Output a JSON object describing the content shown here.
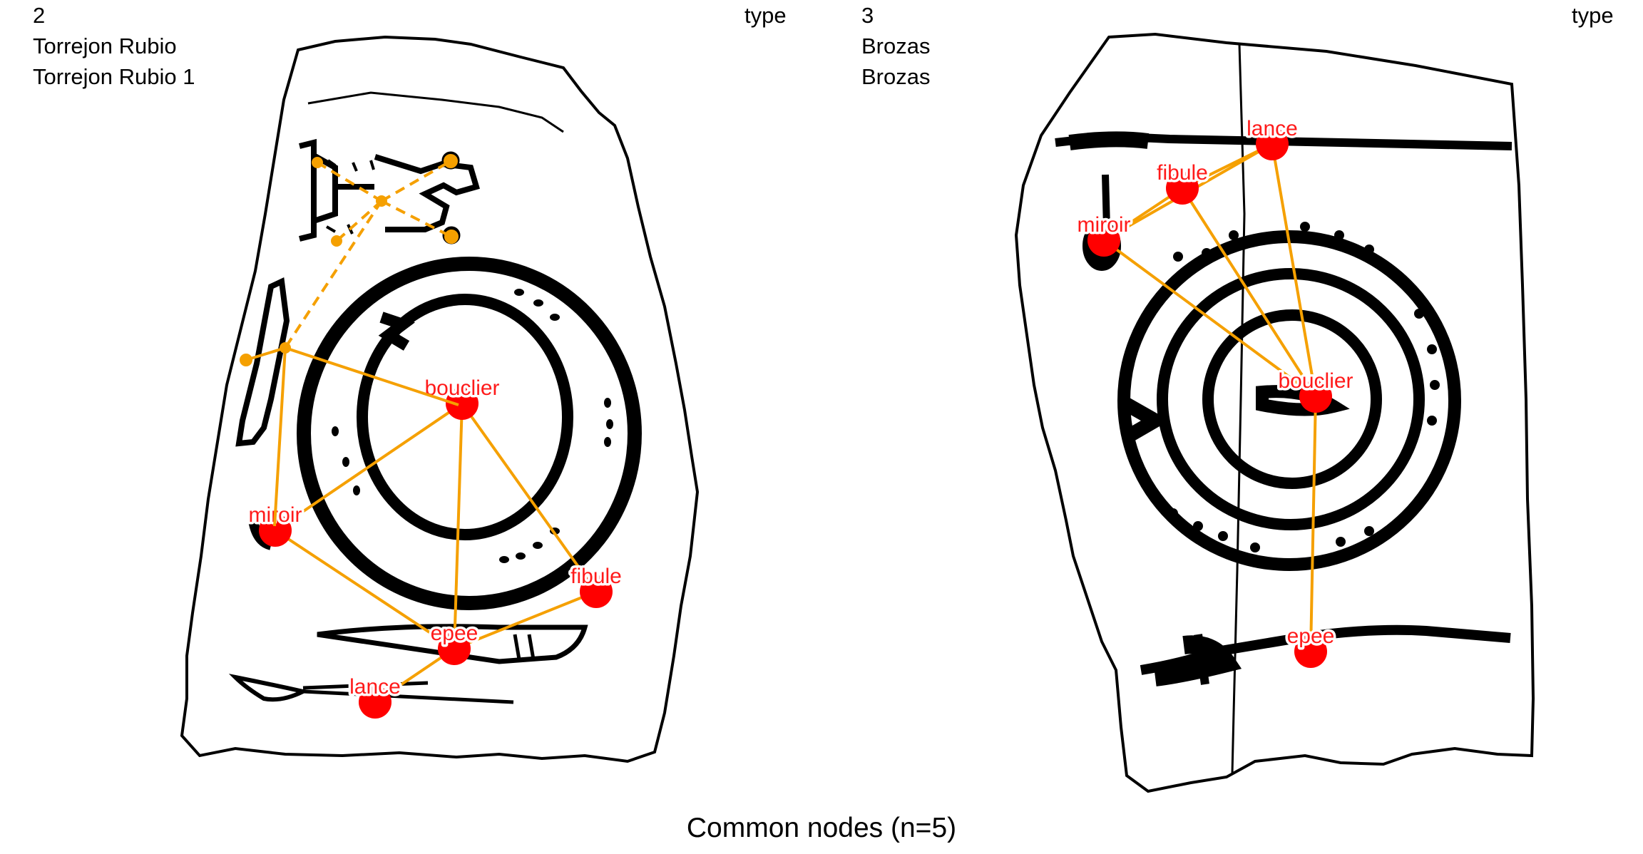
{
  "panels": [
    {
      "id": "left",
      "number": "2",
      "site": "Torrejon Rubio",
      "name": "Torrejon Rubio 1",
      "type_label": "type",
      "nodes": [
        {
          "key": "bouclier",
          "label": "bouclier"
        },
        {
          "key": "miroir",
          "label": "miroir"
        },
        {
          "key": "fibule",
          "label": "fibule"
        },
        {
          "key": "epee",
          "label": "epee"
        },
        {
          "key": "lance",
          "label": "lance"
        }
      ],
      "edges": [
        [
          "bouclier",
          "miroir"
        ],
        [
          "bouclier",
          "fibule"
        ],
        [
          "bouclier",
          "epee"
        ],
        [
          "miroir",
          "epee"
        ],
        [
          "fibule",
          "epee"
        ],
        [
          "epee",
          "lance"
        ]
      ]
    },
    {
      "id": "right",
      "number": "3",
      "site": "Brozas",
      "name": "Brozas",
      "type_label": "type",
      "nodes": [
        {
          "key": "lance",
          "label": "lance"
        },
        {
          "key": "fibule",
          "label": "fibule"
        },
        {
          "key": "miroir",
          "label": "miroir"
        },
        {
          "key": "bouclier",
          "label": "bouclier"
        },
        {
          "key": "epee",
          "label": "epee"
        }
      ],
      "edges": [
        [
          "lance",
          "fibule"
        ],
        [
          "lance",
          "miroir"
        ],
        [
          "fibule",
          "miroir"
        ],
        [
          "lance",
          "bouclier"
        ],
        [
          "fibule",
          "bouclier"
        ],
        [
          "miroir",
          "bouclier"
        ],
        [
          "bouclier",
          "epee"
        ]
      ]
    }
  ],
  "caption": "Common nodes (n=5)",
  "colors": {
    "node": "#ff0000",
    "node_label": "#ff1a1a",
    "edge": "#f5a000",
    "drawing": "#000000"
  }
}
